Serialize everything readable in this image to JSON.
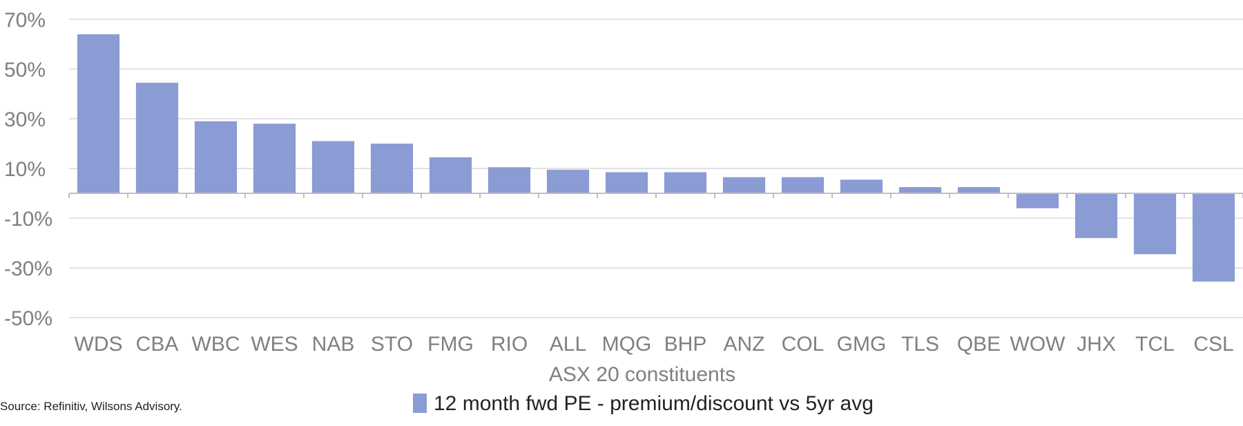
{
  "chart_data": {
    "type": "bar",
    "categories": [
      "WDS",
      "CBA",
      "WBC",
      "WES",
      "NAB",
      "STO",
      "FMG",
      "RIO",
      "ALL",
      "MQG",
      "BHP",
      "ANZ",
      "COL",
      "GMG",
      "TLS",
      "QBE",
      "WOW",
      "JHX",
      "TCL",
      "CSL"
    ],
    "series": [
      {
        "name": "12 month fwd PE - premium/discount vs 5yr avg",
        "values": [
          64,
          44.5,
          29,
          28,
          21,
          20,
          14.5,
          10.5,
          9.5,
          8.5,
          8.5,
          6.5,
          6.5,
          5.5,
          2.5,
          2.5,
          -6,
          -18,
          -24.5,
          -35.5
        ]
      }
    ],
    "xlabel": "ASX 20 constituents",
    "ylabel": "",
    "ylim": [
      -50,
      70
    ],
    "yticks": [
      "70%",
      "50%",
      "30%",
      "10%",
      "-10%",
      "-30%",
      "-50%"
    ],
    "ytick_values": [
      70,
      50,
      30,
      10,
      -10,
      -30,
      -50
    ],
    "grid": true,
    "legend_position": "bottom",
    "bar_color": "#8b9bd4",
    "source": "Source: Refinitiv, Wilsons Advisory."
  }
}
